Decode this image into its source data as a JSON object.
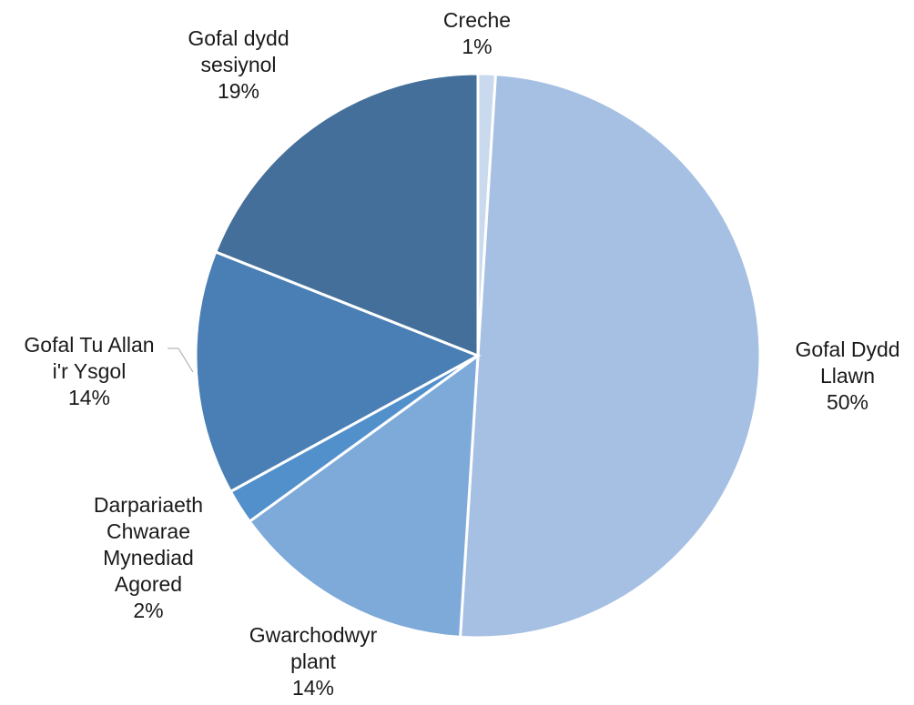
{
  "chart_data": {
    "type": "pie",
    "title": "",
    "start_angle_deg": 0,
    "direction": "clockwise",
    "slices": [
      {
        "label_lines": [
          "Creche"
        ],
        "value": 1,
        "percent_label": "1%",
        "color": "#c9d9ee"
      },
      {
        "label_lines": [
          "Gofal Dydd",
          "Llawn"
        ],
        "value": 50,
        "percent_label": "50%",
        "color": "#a6c0e3"
      },
      {
        "label_lines": [
          "Gwarchodwyr",
          "plant"
        ],
        "value": 14,
        "percent_label": "14%",
        "color": "#7eaad9"
      },
      {
        "label_lines": [
          "Darpariaeth",
          "Chwarae",
          "Mynediad",
          "Agored"
        ],
        "value": 2,
        "percent_label": "2%",
        "color": "#5290cc"
      },
      {
        "label_lines": [
          "Gofal Tu Allan",
          "i'r Ysgol"
        ],
        "value": 14,
        "percent_label": "14%",
        "color": "#4a7fb5"
      },
      {
        "label_lines": [
          "Gofal dydd",
          "sesiynol"
        ],
        "value": 19,
        "percent_label": "19%",
        "color": "#436f9a"
      }
    ]
  }
}
